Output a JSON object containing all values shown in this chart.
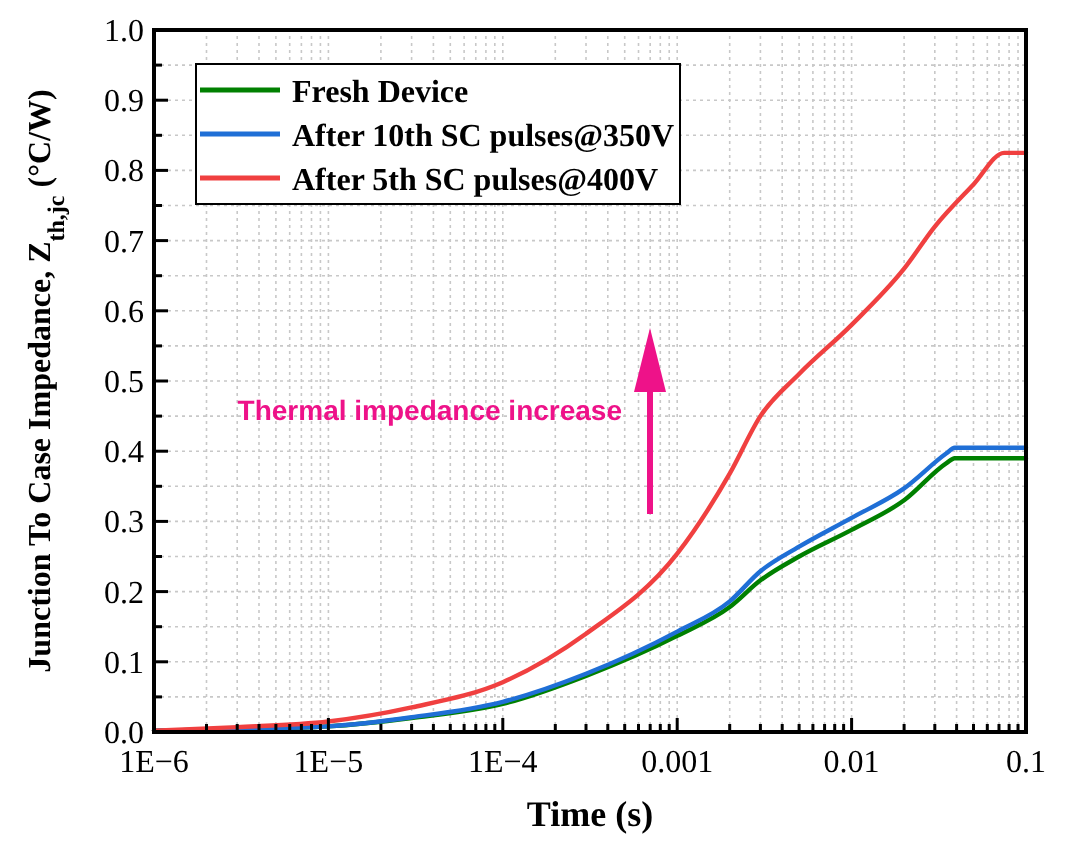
{
  "chart_data": {
    "type": "line",
    "xlabel": "Time (s)",
    "ylabel": "Junction To Case Impedance, Z$_{th,jc}$ (°C/W)",
    "log": "x",
    "xlim": [
      1e-06,
      0.1
    ],
    "ylim": [
      0,
      1
    ],
    "xticks": [
      {
        "value": 1e-06,
        "label": "1E−6"
      },
      {
        "value": 2e-06,
        "label": null
      },
      {
        "value": 3e-06,
        "label": null
      },
      {
        "value": 4e-06,
        "label": null
      },
      {
        "value": 5e-06,
        "label": null
      },
      {
        "value": 6e-06,
        "label": null
      },
      {
        "value": 7e-06,
        "label": null
      },
      {
        "value": 8e-06,
        "label": null
      },
      {
        "value": 9e-06,
        "label": null
      },
      {
        "value": 1e-05,
        "label": "1E−5"
      },
      {
        "value": 2e-05,
        "label": null
      },
      {
        "value": 3e-05,
        "label": null
      },
      {
        "value": 4e-05,
        "label": null
      },
      {
        "value": 5e-05,
        "label": null
      },
      {
        "value": 6e-05,
        "label": null
      },
      {
        "value": 7e-05,
        "label": null
      },
      {
        "value": 8e-05,
        "label": null
      },
      {
        "value": 9e-05,
        "label": null
      },
      {
        "value": 0.0001,
        "label": "1E−4"
      },
      {
        "value": 0.0002,
        "label": null
      },
      {
        "value": 0.0003,
        "label": null
      },
      {
        "value": 0.0004,
        "label": null
      },
      {
        "value": 0.0005,
        "label": null
      },
      {
        "value": 0.0006,
        "label": null
      },
      {
        "value": 0.0007,
        "label": null
      },
      {
        "value": 0.0008,
        "label": null
      },
      {
        "value": 0.0009,
        "label": null
      },
      {
        "value": 0.001,
        "label": "0.001"
      },
      {
        "value": 0.002,
        "label": null
      },
      {
        "value": 0.003,
        "label": null
      },
      {
        "value": 0.004,
        "label": null
      },
      {
        "value": 0.005,
        "label": null
      },
      {
        "value": 0.006,
        "label": null
      },
      {
        "value": 0.007,
        "label": null
      },
      {
        "value": 0.008,
        "label": null
      },
      {
        "value": 0.009,
        "label": null
      },
      {
        "value": 0.01,
        "label": "0.01"
      },
      {
        "value": 0.02,
        "label": null
      },
      {
        "value": 0.03,
        "label": null
      },
      {
        "value": 0.04,
        "label": null
      },
      {
        "value": 0.05,
        "label": null
      },
      {
        "value": 0.06,
        "label": null
      },
      {
        "value": 0.07,
        "label": null
      },
      {
        "value": 0.08,
        "label": null
      },
      {
        "value": 0.09,
        "label": null
      },
      {
        "value": 0.1,
        "label": "0.1"
      }
    ],
    "yticks": [
      {
        "value": 0,
        "label": "0.0"
      },
      {
        "value": 0.05,
        "label": null
      },
      0.1,
      {
        "value": 0.15,
        "label": null
      },
      0.2,
      {
        "value": 0.25,
        "label": null
      },
      0.3,
      {
        "value": 0.35,
        "label": null
      },
      0.4,
      {
        "value": 0.45,
        "label": null
      },
      0.5,
      {
        "value": 0.55,
        "label": null
      },
      0.6,
      {
        "value": 0.65,
        "label": null
      },
      0.7,
      {
        "value": 0.75,
        "label": null
      },
      0.8,
      {
        "value": 0.85,
        "label": null
      },
      0.9,
      {
        "value": 0.95,
        "label": null
      },
      {
        "value": 1,
        "label": "1.0"
      }
    ],
    "grid": true,
    "legend": "top left",
    "line_style": "solid",
    "marker": "none",
    "annotations": [
      "Thermal impedance increase"
    ],
    "series": [
      {
        "name": "Fresh Device",
        "color": "#008000",
        "x": [
          1e-06,
          3e-06,
          1e-05,
          3e-05,
          0.0001,
          0.0003,
          0.001,
          0.002,
          0.003,
          0.005,
          0.01,
          0.02,
          0.035,
          0.039,
          0.1
        ],
        "values": [
          0.002,
          0.004,
          0.008,
          0.02,
          0.04,
          0.08,
          0.137,
          0.178,
          0.216,
          0.25,
          0.288,
          0.33,
          0.383,
          0.39,
          0.39
        ]
      },
      {
        "name": "After 10th SC pulses@350V",
        "color": "#1f6fd6",
        "x": [
          1e-06,
          3e-06,
          1e-05,
          3e-05,
          0.0001,
          0.0003,
          0.001,
          0.002,
          0.003,
          0.005,
          0.01,
          0.02,
          0.035,
          0.039,
          0.1
        ],
        "values": [
          0.002,
          0.004,
          0.008,
          0.021,
          0.043,
          0.083,
          0.143,
          0.186,
          0.229,
          0.264,
          0.305,
          0.347,
          0.397,
          0.405,
          0.405
        ]
      },
      {
        "name": "After 5th SC pulses@400V",
        "color": "#f04040",
        "x": [
          1e-06,
          3e-06,
          1e-05,
          3e-05,
          0.0001,
          0.0003,
          0.001,
          0.002,
          0.003,
          0.005,
          0.01,
          0.02,
          0.03,
          0.05,
          0.075,
          0.1
        ],
        "values": [
          0.002,
          0.007,
          0.015,
          0.035,
          0.071,
          0.14,
          0.254,
          0.368,
          0.45,
          0.51,
          0.58,
          0.66,
          0.72,
          0.78,
          0.825,
          0.825
        ]
      }
    ]
  }
}
